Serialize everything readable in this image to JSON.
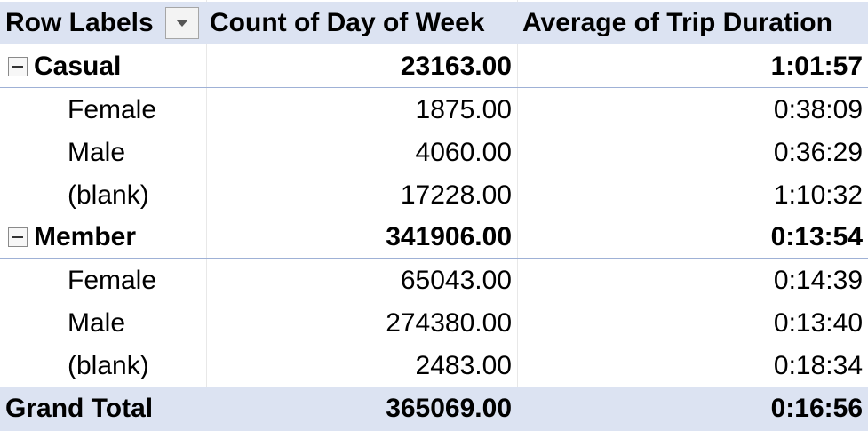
{
  "header": {
    "row_labels": "Row Labels",
    "count_col": "Count of Day of Week",
    "avg_col": "Average of Trip Duration"
  },
  "groups": [
    {
      "label": "Casual",
      "count": "23163.00",
      "avg": "1:01:57",
      "children": [
        {
          "label": "Female",
          "count": "1875.00",
          "avg": "0:38:09"
        },
        {
          "label": "Male",
          "count": "4060.00",
          "avg": "0:36:29"
        },
        {
          "label": "(blank)",
          "count": "17228.00",
          "avg": "1:10:32"
        }
      ]
    },
    {
      "label": "Member",
      "count": "341906.00",
      "avg": "0:13:54",
      "children": [
        {
          "label": "Female",
          "count": "65043.00",
          "avg": "0:14:39"
        },
        {
          "label": "Male",
          "count": "274380.00",
          "avg": "0:13:40"
        },
        {
          "label": "(blank)",
          "count": "2483.00",
          "avg": "0:18:34"
        }
      ]
    }
  ],
  "grand_total": {
    "label": "Grand Total",
    "count": "365069.00",
    "avg": "0:16:56"
  },
  "colors": {
    "header_bg": "#dce3f2",
    "border": "#9fb1d6"
  },
  "icons": {
    "filter": "filter-dropdown-icon",
    "collapse": "collapse-minus-icon"
  }
}
